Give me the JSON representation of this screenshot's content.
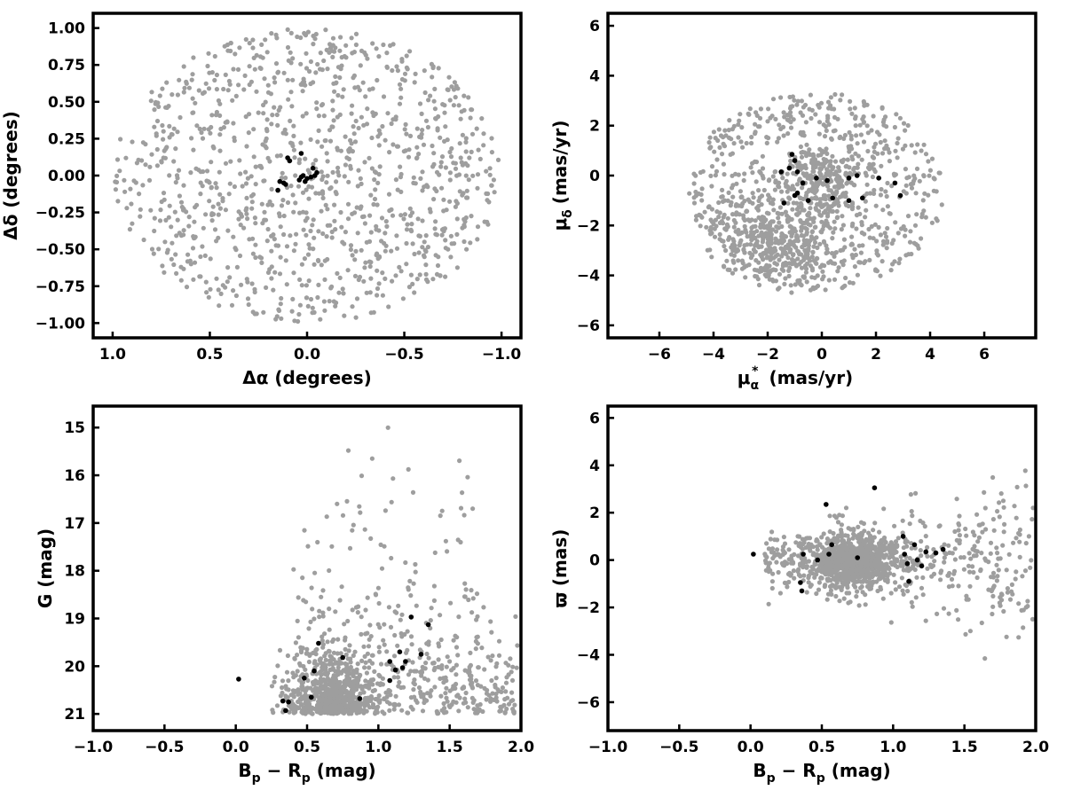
{
  "colors": {
    "field": "#9e9e9e",
    "members": "#000000",
    "frame": "#000000"
  },
  "chart_data": [
    {
      "id": "spatial",
      "type": "scatter",
      "xlabel": "Δα (degrees)",
      "ylabel": "Δδ (degrees)",
      "xlim": [
        1.1,
        -1.1
      ],
      "ylim": [
        -1.1,
        1.1
      ],
      "x_inverted": true,
      "xticks": [
        1.0,
        0.5,
        0.0,
        -0.5,
        -1.0
      ],
      "xtick_labels": [
        "1.0",
        "0.5",
        "0.0",
        "−0.5",
        "−1.0"
      ],
      "yticks": [
        -1.0,
        -0.75,
        -0.5,
        -0.25,
        0.0,
        0.25,
        0.5,
        0.75,
        1.0
      ],
      "ytick_labels": [
        "−1.00",
        "−0.75",
        "−0.50",
        "−0.25",
        "0.00",
        "0.25",
        "0.50",
        "0.75",
        "1.00"
      ],
      "background_distribution": "field stars filling disk of radius 1.0 deg centered at (0,0)",
      "members": [
        [
          0.03,
          0.15
        ],
        [
          0.1,
          0.12
        ],
        [
          0.09,
          0.1
        ],
        [
          -0.03,
          0.05
        ],
        [
          -0.04,
          0.0
        ],
        [
          -0.02,
          -0.01
        ],
        [
          0.0,
          -0.02
        ],
        [
          0.02,
          0.0
        ],
        [
          0.04,
          -0.03
        ],
        [
          0.01,
          -0.04
        ],
        [
          0.14,
          -0.04
        ],
        [
          0.12,
          -0.05
        ],
        [
          0.15,
          -0.1
        ],
        [
          0.11,
          -0.06
        ],
        [
          -0.05,
          0.02
        ],
        [
          0.03,
          -0.01
        ]
      ]
    },
    {
      "id": "proper-motion",
      "type": "scatter",
      "xlabel_main": "μ",
      "xlabel_sub": "α",
      "xlabel_sup": "*",
      "xlabel_units": "(mas/yr)",
      "ylabel_main": "μ",
      "ylabel_sub": "δ",
      "ylabel_units": "(mas/yr)",
      "xlim": [
        -7.9,
        7.9
      ],
      "ylim": [
        -6.5,
        6.5
      ],
      "xticks": [
        -6,
        -4,
        -2,
        0,
        2,
        4,
        6
      ],
      "xtick_labels": [
        "−6",
        "−4",
        "−2",
        "0",
        "2",
        "4",
        "6"
      ],
      "yticks": [
        -6,
        -4,
        -2,
        0,
        2,
        4,
        6
      ],
      "ytick_labels": [
        "−6",
        "−4",
        "−2",
        "0",
        "2",
        "4",
        "6"
      ],
      "background_distribution": "field stars in disk radius ~4.7 centered near (-0.2,-0.6), denser cluster near (-1.8,-2.8) and (0,0)",
      "members": [
        [
          -1.5,
          0.15
        ],
        [
          -1.2,
          0.3
        ],
        [
          -1.0,
          0.6
        ],
        [
          -0.9,
          0.15
        ],
        [
          -0.9,
          -0.7
        ],
        [
          -1.0,
          -0.8
        ],
        [
          -1.4,
          -1.1
        ],
        [
          -0.5,
          -1.0
        ],
        [
          -0.2,
          -0.1
        ],
        [
          0.2,
          -0.2
        ],
        [
          0.4,
          -0.9
        ],
        [
          -0.7,
          -0.3
        ],
        [
          1.0,
          -0.1
        ],
        [
          1.0,
          -1.0
        ],
        [
          1.3,
          0.0
        ],
        [
          1.5,
          -0.9
        ],
        [
          2.1,
          -0.1
        ],
        [
          2.7,
          -0.3
        ],
        [
          2.9,
          -0.8
        ],
        [
          -1.1,
          0.85
        ]
      ]
    },
    {
      "id": "cmd",
      "type": "scatter",
      "xlabel_main": "B",
      "xlabel_sub1": "p",
      "xlabel_mid": " − R",
      "xlabel_sub2": "p",
      "xlabel_units": " (mag)",
      "ylabel": "G (mag)",
      "xlim": [
        -1.0,
        2.0
      ],
      "ylim": [
        14.55,
        21.35
      ],
      "y_inverted": true,
      "xticks": [
        -1.0,
        -0.5,
        0.0,
        0.5,
        1.0,
        1.5,
        2.0
      ],
      "xtick_labels": [
        "−1.0",
        "−0.5",
        "0.0",
        "0.5",
        "1.0",
        "1.5",
        "2.0"
      ],
      "yticks": [
        15,
        16,
        17,
        18,
        19,
        20,
        21
      ],
      "ytick_labels": [
        "15",
        "16",
        "17",
        "18",
        "19",
        "20",
        "21"
      ],
      "background_distribution": "field stars concentrated at Bp-Rp 0.5-0.9, G 19.5-21, spreading to fainter limit 21",
      "members": [
        [
          0.02,
          20.27
        ],
        [
          0.35,
          20.93
        ],
        [
          0.37,
          20.75
        ],
        [
          0.48,
          20.25
        ],
        [
          0.53,
          20.65
        ],
        [
          0.55,
          20.1
        ],
        [
          0.58,
          19.52
        ],
        [
          0.75,
          19.82
        ],
        [
          0.87,
          20.68
        ],
        [
          1.08,
          20.3
        ],
        [
          1.08,
          19.9
        ],
        [
          1.12,
          20.08
        ],
        [
          1.15,
          19.7
        ],
        [
          1.17,
          20.03
        ],
        [
          1.19,
          19.9
        ],
        [
          1.23,
          18.97
        ],
        [
          1.3,
          19.75
        ],
        [
          1.35,
          19.13
        ],
        [
          0.33,
          20.73
        ]
      ]
    },
    {
      "id": "parallax",
      "type": "scatter",
      "xlabel_main": "B",
      "xlabel_sub1": "p",
      "xlabel_mid": " − R",
      "xlabel_sub2": "p",
      "xlabel_units": " (mag)",
      "ylabel": "ϖ (mas)",
      "xlim": [
        -1.0,
        2.0
      ],
      "ylim": [
        -7.2,
        6.5
      ],
      "xticks": [
        -1.0,
        -0.5,
        0.0,
        0.5,
        1.0,
        1.5,
        2.0
      ],
      "xtick_labels": [
        "−1.0",
        "−0.5",
        "0.0",
        "0.5",
        "1.0",
        "1.5",
        "2.0"
      ],
      "yticks": [
        -6,
        -4,
        -2,
        0,
        2,
        4,
        6
      ],
      "ytick_labels": [
        "−6",
        "−4",
        "−2",
        "0",
        "2",
        "4",
        "6"
      ],
      "background_distribution": "field stars concentrated near parallax 0 at Bp-Rp 0.6-0.9, spread increasing with color",
      "members": [
        [
          0.02,
          0.25
        ],
        [
          0.35,
          -0.95
        ],
        [
          0.36,
          -1.3
        ],
        [
          0.37,
          0.25
        ],
        [
          0.47,
          0.0
        ],
        [
          0.53,
          2.35
        ],
        [
          0.55,
          0.25
        ],
        [
          0.57,
          0.65
        ],
        [
          0.75,
          0.1
        ],
        [
          0.87,
          3.05
        ],
        [
          1.07,
          1.0
        ],
        [
          1.08,
          0.25
        ],
        [
          1.1,
          -0.15
        ],
        [
          1.11,
          -0.9
        ],
        [
          1.15,
          0.65
        ],
        [
          1.17,
          0.0
        ],
        [
          1.2,
          -0.25
        ],
        [
          1.23,
          0.35
        ],
        [
          1.3,
          0.3
        ],
        [
          1.35,
          0.45
        ]
      ]
    }
  ]
}
